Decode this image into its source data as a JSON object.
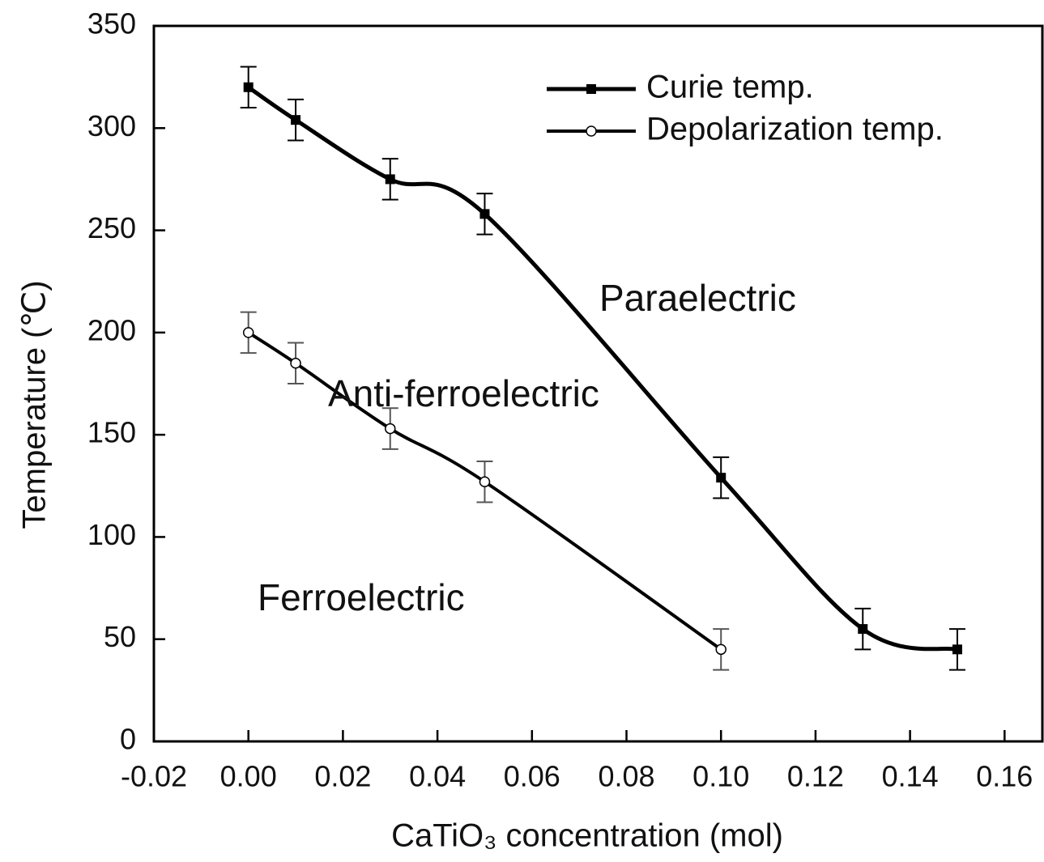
{
  "chart_data": {
    "type": "line",
    "x_label": "CaTiO₃ concentration (mol)",
    "y_label": "Temperature (℃)",
    "annotations": [
      "Paraelectric",
      "Anti-ferroelectric",
      "Ferroelectric"
    ],
    "series": [
      {
        "name": "Curie temp.",
        "color": "#000000",
        "marker": "square",
        "x": [
          0,
          0.01,
          0.03,
          0.05,
          0.1,
          0.13,
          0.15
        ],
        "values": [
          320,
          304,
          275,
          258,
          129,
          55,
          45
        ],
        "errors": [
          10,
          10,
          10,
          10,
          10,
          10,
          10
        ]
      },
      {
        "name": "Depolarization temp.",
        "color": "#000000",
        "marker": "circle",
        "x": [
          0,
          0.01,
          0.03,
          0.05,
          0.1
        ],
        "values": [
          200,
          185,
          153,
          127,
          45
        ],
        "errors": [
          10,
          10,
          10,
          10,
          10
        ]
      }
    ],
    "xlim": [
      -0.02,
      0.168
    ],
    "ylim": [
      0,
      350
    ],
    "xticks": [
      -0.02,
      {
        "value": 0,
        "label": "0.00"
      },
      0.02,
      0.04,
      0.06,
      0.08,
      {
        "value": 0.1,
        "label": "0.10"
      },
      0.12,
      0.14,
      0.16
    ],
    "yticks": [
      0,
      50,
      100,
      150,
      200,
      250,
      300,
      350
    ],
    "legend": "upper right",
    "grid": false
  }
}
